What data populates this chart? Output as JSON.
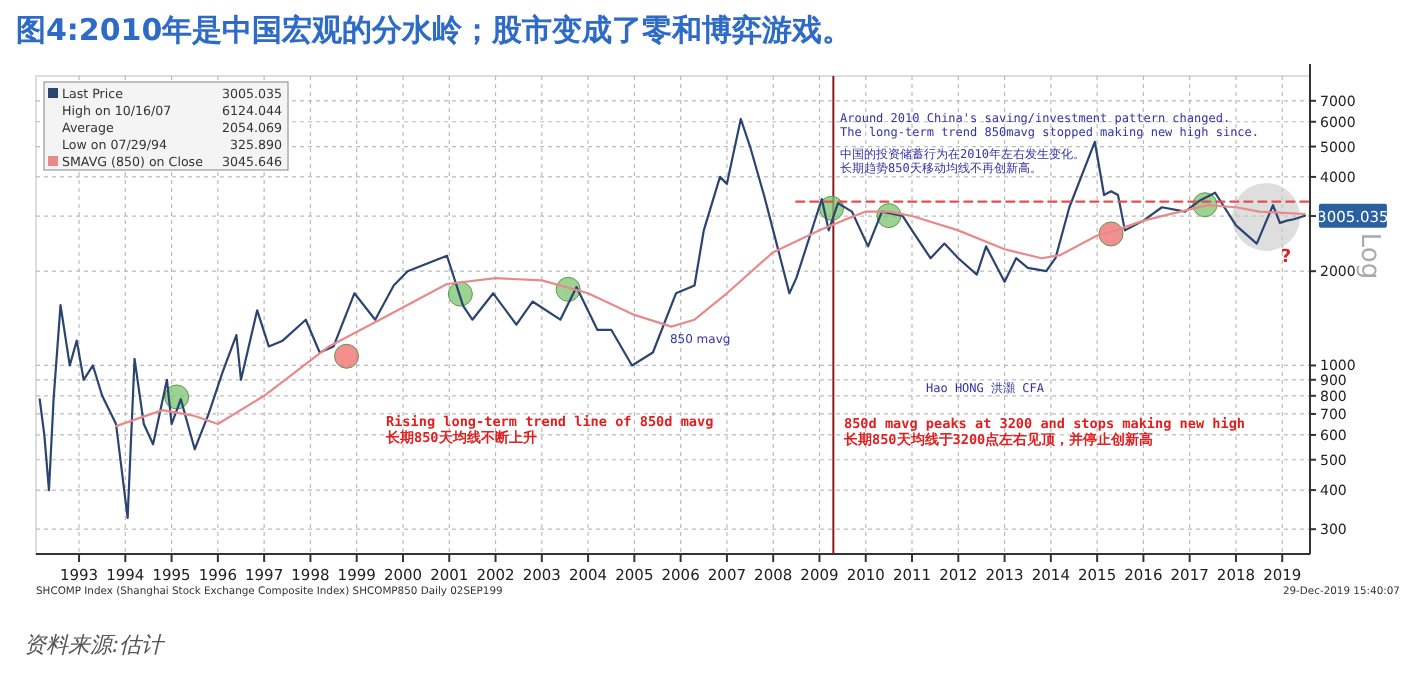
{
  "chart_data": {
    "type": "line",
    "title": "图4:2010年是中国宏观的分水岭；股市变成了零和博弈游戏。",
    "ylabel": "Log",
    "log": true,
    "grid": true,
    "legend": "top left",
    "xlim": [
      1992.57,
      2020.1
    ],
    "xticks": [
      {
        "value": 1993.5,
        "label": "1993"
      },
      {
        "value": 1994.5,
        "label": "1994"
      },
      {
        "value": 1995.5,
        "label": "1995"
      },
      {
        "value": 1996.5,
        "label": "1996"
      },
      {
        "value": 1997.5,
        "label": "1997"
      },
      {
        "value": 1998.5,
        "label": "1998"
      },
      {
        "value": 1999.5,
        "label": "1999"
      },
      {
        "value": 2000.5,
        "label": "2000"
      },
      {
        "value": 2001.5,
        "label": "2001"
      },
      {
        "value": 2002.5,
        "label": "2002"
      },
      {
        "value": 2003.5,
        "label": "2003"
      },
      {
        "value": 2004.5,
        "label": "2004"
      },
      {
        "value": 2005.5,
        "label": "2005"
      },
      {
        "value": 2006.5,
        "label": "2006"
      },
      {
        "value": 2007.5,
        "label": "2007"
      },
      {
        "value": 2008.5,
        "label": "2008"
      },
      {
        "value": 2009.5,
        "label": "2009"
      },
      {
        "value": 2010.5,
        "label": "2010"
      },
      {
        "value": 2011.5,
        "label": "2011"
      },
      {
        "value": 2012.5,
        "label": "2012"
      },
      {
        "value": 2013.5,
        "label": "2013"
      },
      {
        "value": 2014.5,
        "label": "2014"
      },
      {
        "value": 2015.5,
        "label": "2015"
      },
      {
        "value": 2016.5,
        "label": "2016"
      },
      {
        "value": 2017.5,
        "label": "2017"
      },
      {
        "value": 2018.5,
        "label": "2018"
      },
      {
        "value": 2019.5,
        "label": "2019"
      }
    ],
    "ylim": [
      250,
      8400
    ],
    "yticks": [
      300,
      400,
      500,
      600,
      700,
      800,
      900,
      1000,
      2000,
      {
        "value": 3000,
        "label": null
      },
      4000,
      5000,
      6000,
      7000
    ],
    "ref_lines": [
      {
        "axis": "x",
        "value": 2009.8,
        "color": "#8b1a1a"
      }
    ],
    "series": [
      {
        "name": "Last Price",
        "color": "#2b4470",
        "x": [
          1992.65,
          1992.75,
          1992.85,
          1992.95,
          1993.1,
          1993.3,
          1993.45,
          1993.6,
          1993.8,
          1994.0,
          1994.3,
          1994.55,
          1994.7,
          1994.9,
          1995.1,
          1995.4,
          1995.5,
          1995.7,
          1996.0,
          1996.3,
          1996.6,
          1996.9,
          1997.0,
          1997.35,
          1997.6,
          1997.9,
          1998.4,
          1998.7,
          1999.0,
          1999.45,
          1999.9,
          2000.3,
          2000.6,
          2001.45,
          2001.8,
          2002.0,
          2002.45,
          2002.95,
          2003.3,
          2003.9,
          2004.25,
          2004.7,
          2005.0,
          2005.45,
          2005.9,
          2006.4,
          2006.8,
          2007.0,
          2007.35,
          2007.5,
          2007.8,
          2008.0,
          2008.3,
          2008.5,
          2008.85,
          2009.0,
          2009.55,
          2009.7,
          2009.9,
          2010.2,
          2010.55,
          2010.85,
          2011.3,
          2011.5,
          2011.9,
          2012.2,
          2012.5,
          2012.9,
          2013.1,
          2013.5,
          2013.75,
          2014.0,
          2014.4,
          2014.6,
          2014.9,
          2015.45,
          2015.65,
          2015.8,
          2015.95,
          2016.1,
          2016.5,
          2016.9,
          2017.4,
          2017.7,
          2018.05,
          2018.5,
          2018.95,
          2019.3,
          2019.45,
          2019.6,
          2019.75,
          2019.99
        ],
        "values": [
          780,
          600,
          400,
          780,
          1558,
          1000,
          1200,
          900,
          1000,
          800,
          650,
          326,
          1050,
          650,
          560,
          900,
          650,
          780,
          540,
          700,
          950,
          1250,
          900,
          1500,
          1150,
          1200,
          1400,
          1100,
          1150,
          1700,
          1400,
          1800,
          2000,
          2240,
          1550,
          1400,
          1700,
          1350,
          1600,
          1400,
          1780,
          1300,
          1300,
          1000,
          1100,
          1700,
          1800,
          2700,
          4000,
          3800,
          6124,
          5000,
          3500,
          2700,
          1700,
          1900,
          3400,
          2700,
          3300,
          3100,
          2400,
          3100,
          3000,
          2700,
          2200,
          2450,
          2200,
          1950,
          2400,
          1850,
          2200,
          2050,
          2000,
          2200,
          3200,
          5178,
          3500,
          3600,
          3500,
          2700,
          2900,
          3200,
          3100,
          3350,
          3560,
          2800,
          2450,
          3250,
          2850,
          2900,
          2930,
          3005
        ]
      },
      {
        "name": "SMAVG (850) on Close",
        "color": "#e88a8a",
        "x": [
          1994.3,
          1995.3,
          1996.0,
          1996.5,
          1997.5,
          1998.9,
          2000.0,
          2001.45,
          2002.5,
          2003.5,
          2004.5,
          2005.5,
          2006.3,
          2006.8,
          2007.5,
          2008.5,
          2009.5,
          2010.0,
          2010.5,
          2011.0,
          2011.5,
          2012.5,
          2013.5,
          2014.3,
          2014.7,
          2015.5,
          2015.9,
          2016.5,
          2017.5,
          2017.9,
          2018.5,
          2019.0,
          2019.99
        ],
        "values": [
          640,
          720,
          690,
          650,
          800,
          1150,
          1400,
          1820,
          1900,
          1870,
          1700,
          1450,
          1330,
          1400,
          1700,
          2300,
          2700,
          2900,
          3100,
          3100,
          3000,
          2700,
          2350,
          2200,
          2250,
          2600,
          2700,
          2900,
          3150,
          3250,
          3200,
          3100,
          3045.646
        ]
      },
      {
        "type": "line",
        "color": "#e05050",
        "line_style": "dashed",
        "x": [
          2009.0,
          2020.1
        ],
        "values": [
          3335,
          3335
        ]
      },
      {
        "type": "scatter",
        "color": "#7cc46e",
        "x": [
          1995.61,
          2001.74,
          2004.07,
          2009.76,
          2011.0,
          2017.83
        ],
        "values": [
          793,
          1690,
          1750,
          3175,
          3010,
          3260
        ]
      },
      {
        "type": "scatter",
        "color": "#f06a6a",
        "x": [
          1999.28,
          2015.8
        ],
        "values": [
          1070,
          2630
        ]
      },
      {
        "type": "bubble",
        "color": "#c8c8c8",
        "x": [
          2019.15
        ],
        "values": [
          2980
        ],
        "sizes": [
          1
        ]
      }
    ],
    "annotations": [
      "3005.035",
      "High on 10/16/07",
      "6124.044",
      "Average",
      "2054.069",
      "Low on 07/29/94",
      "325.890",
      "3045.646",
      "Around 2010 China's saving/investment pattern changed.",
      "The long-term trend 850mavg stopped making new high since.",
      "中国的投资储蓄行为在2010年左右发生变化。",
      "长期趋势850天移动均线不再创新高。",
      {
        "text": "850 mavg",
        "x": 2006.7,
        "y": 1330
      },
      "Hao HONG 洪灝 CFA",
      "Rising long-term trend line of 850d mavg",
      "长期850天均线不断上升",
      "850d mavg peaks at 3200 and stops making new high",
      "长期850天均线于3200点左右见顶，并停止创新高",
      "?",
      "SHCOMP Index (Shanghai Stock Exchange Composite Index) SHCOMP850  Daily 02SEP199",
      "29-Dec-2019 15:40:07",
      "资料来源:估计",
      {
        "text": "3005.035",
        "x": 2019.99,
        "y": 3005.035
      }
    ]
  }
}
